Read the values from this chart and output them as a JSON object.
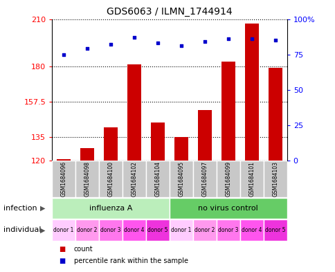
{
  "title": "GDS6063 / ILMN_1744914",
  "samples": [
    "GSM1684096",
    "GSM1684098",
    "GSM1684100",
    "GSM1684102",
    "GSM1684104",
    "GSM1684095",
    "GSM1684097",
    "GSM1684099",
    "GSM1684101",
    "GSM1684103"
  ],
  "counts": [
    121,
    128,
    141,
    181,
    144,
    135,
    152,
    183,
    207,
    179
  ],
  "percentiles": [
    75,
    79,
    82,
    87,
    83,
    81,
    84,
    86,
    86,
    85
  ],
  "ylim_left": [
    120,
    210
  ],
  "yticks_left": [
    120,
    135,
    157.5,
    180,
    210
  ],
  "ylim_right": [
    0,
    100
  ],
  "yticks_right": [
    0,
    25,
    50,
    75,
    100
  ],
  "bar_color": "#CC0000",
  "dot_color": "#0000CC",
  "bar_bottom": 120,
  "infection_labels": [
    "influenza A",
    "no virus control"
  ],
  "infection_colors": [
    "#BBEEBB",
    "#66CC66"
  ],
  "infection_splits": [
    5,
    10
  ],
  "individual_labels": [
    "donor 1",
    "donor 2",
    "donor 3",
    "donor 4",
    "donor 5",
    "donor 1",
    "donor 2",
    "donor 3",
    "donor 4",
    "donor 5"
  ],
  "individual_colors": [
    "#FFBBFF",
    "#FF99EE",
    "#FF77EE",
    "#FF55EE",
    "#EE33DD",
    "#FFBBFF",
    "#FF99EE",
    "#FF77EE",
    "#FF55EE",
    "#EE33DD"
  ],
  "sample_bg_color": "#C8C8C8",
  "legend_count_color": "#CC0000",
  "legend_pct_color": "#0000CC",
  "xlabel_infection": "infection",
  "xlabel_individual": "individual"
}
